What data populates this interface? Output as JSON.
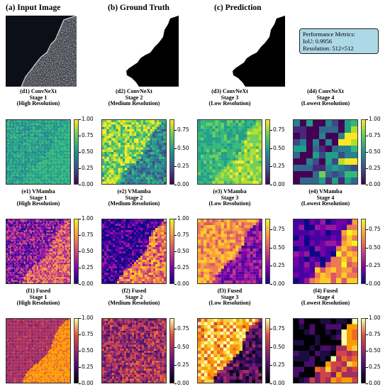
{
  "titles": {
    "input": "(a) Input Image",
    "gt": "(b) Ground Truth",
    "pred": "(c) Prediction"
  },
  "metrics": {
    "line1": "Performance Metrics:",
    "line2": "IoU: 0.9956",
    "line3": "Resolution: 512×512"
  },
  "rows": [
    {
      "colormap": "viridis",
      "panels": [
        {
          "t1": "(d1) ConvNeXt",
          "t2": "Stage 1",
          "t3": "(High Resolution)",
          "ticks": [
            "1.00",
            "0.75",
            "0.50",
            "0.25",
            "0.00"
          ]
        },
        {
          "t1": "(d2) ConvNeXt",
          "t2": "Stage 2",
          "t3": "(Medium Resolution)",
          "ticks": [
            "0.75",
            "0.50",
            "0.25",
            "0.00"
          ]
        },
        {
          "t1": "(d3) ConvNeXt",
          "t2": "Stage 3",
          "t3": "(Low Resolution)",
          "ticks": [
            "0.75",
            "0.50",
            "0.25",
            "0.00"
          ]
        },
        {
          "t1": "(d4) ConvNeXt",
          "t2": "Stage 4",
          "t3": "(Lowest Resolution)",
          "ticks": [
            "1.00",
            "0.75",
            "0.50",
            "0.25",
            "0.00"
          ]
        }
      ]
    },
    {
      "colormap": "plasma",
      "panels": [
        {
          "t1": "(e1) VMamba",
          "t2": "Stage 1",
          "t3": "(High Resolution)",
          "ticks": [
            "1.00",
            "0.75",
            "0.50",
            "0.25",
            "0.00"
          ]
        },
        {
          "t1": "(e2) VMamba",
          "t2": "Stage 2",
          "t3": "(Medium Resolution)",
          "ticks": [
            "1.00",
            "0.75",
            "0.50",
            "0.25",
            "0.00"
          ]
        },
        {
          "t1": "(e3) VMamba",
          "t2": "Stage 3",
          "t3": "(Low Resolution)",
          "ticks": [
            "0.75",
            "0.50",
            "0.25",
            "0.00"
          ]
        },
        {
          "t1": "(e4) VMamba",
          "t2": "Stage 4",
          "t3": "(Lowest Resolution)",
          "ticks": [
            "0.75",
            "0.50",
            "0.25",
            "0.00"
          ]
        }
      ]
    },
    {
      "colormap": "inferno",
      "panels": [
        {
          "t1": "(f1) Fused",
          "t2": "Stage 1",
          "t3": "(High Resolution)",
          "ticks": [
            "1.00",
            "0.75",
            "0.50",
            "0.25",
            "0.00"
          ]
        },
        {
          "t1": "(f2) Fused",
          "t2": "Stage 2",
          "t3": "(Medium Resolution)",
          "ticks": [
            "0.75",
            "0.50",
            "0.25",
            "0.00"
          ]
        },
        {
          "t1": "(f3) Fused",
          "t2": "Stage 3",
          "t3": "(Low Resolution)",
          "ticks": [
            "0.75",
            "0.50",
            "0.25",
            "0.00"
          ]
        },
        {
          "t1": "(f4) Fused",
          "t2": "Stage 4",
          "t3": "(Lowest Resolution)",
          "ticks": [
            "1.00",
            "0.75",
            "0.50",
            "0.25",
            "0.00"
          ]
        }
      ]
    }
  ]
}
